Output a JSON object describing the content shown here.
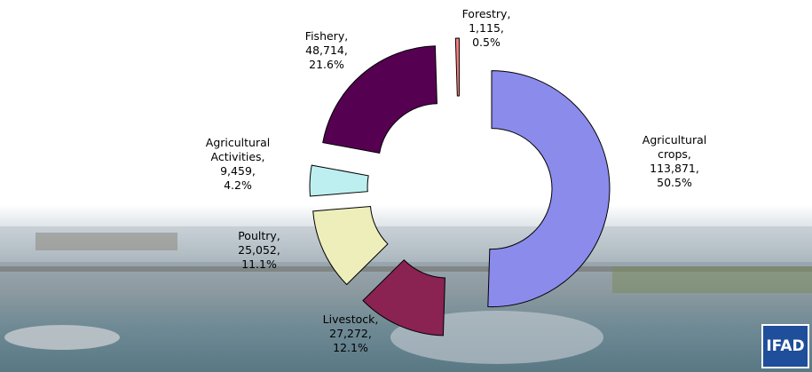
{
  "chart_data": {
    "type": "donut",
    "categories": [
      "Agricultural crops,",
      "Livestock,",
      "Poultry,",
      "Agricultural Activities,",
      "Fishery,",
      "Forestry,"
    ],
    "values": [
      113871,
      27272,
      25052,
      9459,
      48714,
      1115
    ],
    "value_labels": [
      "113,871,",
      "27,272,",
      "25,052,",
      "9,459,",
      "48,714,",
      "1,115,"
    ],
    "percent": [
      50.5,
      12.1,
      11.1,
      4.2,
      21.6,
      0.5
    ],
    "percent_labels": [
      "50.5%",
      "12.1%",
      "11.1%",
      "4.2%",
      "21.6%",
      "0.5%"
    ],
    "colors": [
      "#8b8bec",
      "#8a2252",
      "#eeeebb",
      "#bdeff0",
      "#560052",
      "#ff7f7f"
    ]
  },
  "logo": "IFAD"
}
